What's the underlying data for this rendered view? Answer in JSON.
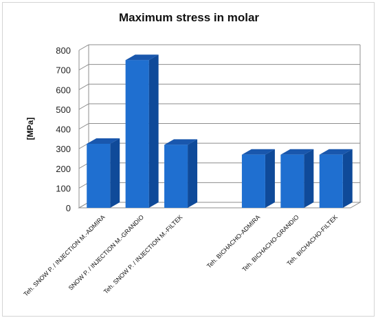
{
  "chart_data": {
    "type": "bar",
    "title": "Maximum stress in molar",
    "ylabel": "[MPa]",
    "xlabel": "",
    "ylim": [
      0,
      800
    ],
    "yticks": [
      0,
      100,
      200,
      300,
      400,
      500,
      600,
      700,
      800
    ],
    "grid": true,
    "legend": "none",
    "categories": [
      "Teh. SNOW P. / INJECTION M.-ADMIRA",
      "SNOW P. / INJECTION M.-GRANDIO",
      "Teh. SNOW P. / INJECTION M.-FILTEK",
      "",
      "Teh. BICHACHO-ADMIRA",
      "Teh. BICHACHO-GRANDIO",
      "Teh. BICHACHO-FILTEK"
    ],
    "values": [
      325,
      750,
      320,
      null,
      270,
      270,
      270
    ],
    "colors": {
      "front": "#1f6fd0",
      "side": "#0f4a99",
      "top": "#1957ad"
    }
  }
}
